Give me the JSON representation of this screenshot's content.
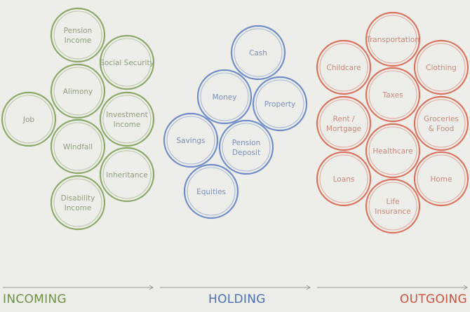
{
  "colors": {
    "incoming": "#8aa868",
    "incoming_text": "#8f9e7e",
    "holding": "#6f8cc6",
    "holding_text": "#7b8fb8",
    "outgoing": "#d9735f",
    "outgoing_text": "#c98a7d",
    "arrow": "#9a9a96"
  },
  "sections": [
    {
      "id": "incoming",
      "label": "INCOMING",
      "items": [
        {
          "lines": [
            "Pension",
            "Income"
          ]
        },
        {
          "lines": [
            "Social Security"
          ]
        },
        {
          "lines": [
            "Alimony"
          ]
        },
        {
          "lines": [
            "Job"
          ]
        },
        {
          "lines": [
            "Investment",
            "Income"
          ]
        },
        {
          "lines": [
            "Windfall"
          ]
        },
        {
          "lines": [
            "Inheritance"
          ]
        },
        {
          "lines": [
            "Disability",
            "Income"
          ]
        }
      ]
    },
    {
      "id": "holding",
      "label": "HOLDING",
      "items": [
        {
          "lines": [
            "Cash"
          ]
        },
        {
          "lines": [
            "Money"
          ]
        },
        {
          "lines": [
            "Property"
          ]
        },
        {
          "lines": [
            "Savings"
          ]
        },
        {
          "lines": [
            "Pension",
            "Deposit"
          ]
        },
        {
          "lines": [
            "Equities"
          ]
        }
      ]
    },
    {
      "id": "outgoing",
      "label": "OUTGOING",
      "items": [
        {
          "lines": [
            "Transportation"
          ]
        },
        {
          "lines": [
            "Childcare"
          ]
        },
        {
          "lines": [
            "Clothing"
          ]
        },
        {
          "lines": [
            "Taxes"
          ]
        },
        {
          "lines": [
            "Rent /",
            "Mortgage"
          ]
        },
        {
          "lines": [
            "Groceries",
            "& Food"
          ]
        },
        {
          "lines": [
            "Healthcare"
          ]
        },
        {
          "lines": [
            "Loans"
          ]
        },
        {
          "lines": [
            "Home"
          ]
        },
        {
          "lines": [
            "Life",
            "Insurance"
          ]
        }
      ]
    }
  ]
}
